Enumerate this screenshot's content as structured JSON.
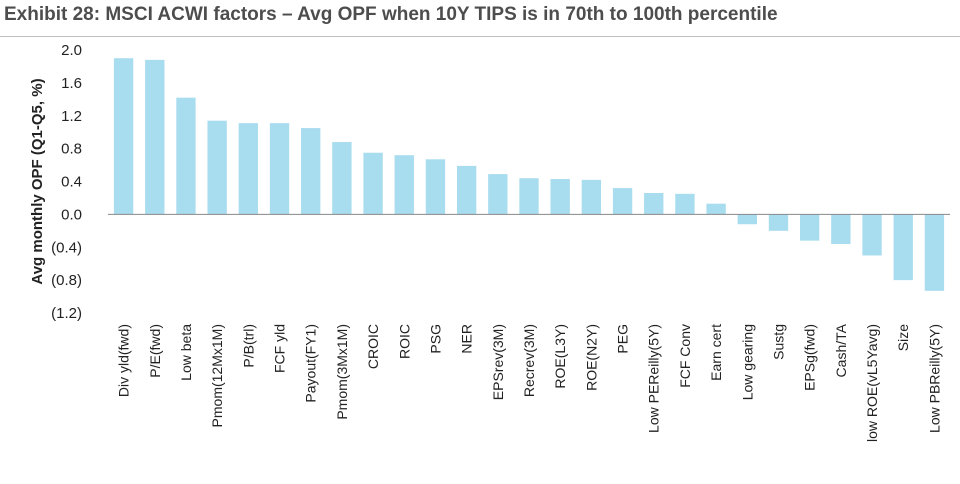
{
  "title": "Exhibit 28: MSCI ACWI factors – Avg OPF when 10Y TIPS is in 70th to 100th percentile",
  "colors": {
    "bar": "#a8dcef",
    "axis": "#888888",
    "text": "#222222",
    "title": "#4d4d4d"
  },
  "chart_data": {
    "type": "bar",
    "title": "Exhibit 28: MSCI ACWI factors – Avg OPF when 10Y TIPS is in 70th to 100th percentile",
    "xlabel": "",
    "ylabel": "Avg monthly OPF (Q1-Q5, %)",
    "ylim": [
      -1.2,
      2.0
    ],
    "yticks": [
      2.0,
      1.6,
      1.2,
      0.8,
      0.4,
      0.0,
      -0.4,
      -0.8,
      -1.2
    ],
    "ytick_labels": [
      "2.0",
      "1.6",
      "1.2",
      "0.8",
      "0.4",
      "0.0",
      "(0.4)",
      "(0.8)",
      "(1.2)"
    ],
    "grid": false,
    "legend": "none",
    "categories": [
      "Div yld(fwd)",
      "P/E(fwd)",
      "Low beta",
      "Pmom(12Mx1M)",
      "P/B(trl)",
      "FCF yld",
      "Payout(FY1)",
      "Pmom(3Mx1M)",
      "CROIC",
      "ROIC",
      "PSG",
      "NER",
      "EPSrev(3M)",
      "Recrev(3M)",
      "ROE(L3Y)",
      "ROE(N2Y)",
      "PEG",
      "Low PEReilly(5Y)",
      "FCF Conv",
      "Earn cert",
      "Low gearing",
      "Sustg",
      "EPSg(fwd)",
      "Cash/TA",
      "low ROE(vL5Yavg)",
      "Size",
      "Low PBReilly(5Y)"
    ],
    "values": [
      1.9,
      1.88,
      1.42,
      1.14,
      1.11,
      1.11,
      1.05,
      0.88,
      0.75,
      0.72,
      0.67,
      0.59,
      0.49,
      0.44,
      0.43,
      0.42,
      0.32,
      0.26,
      0.25,
      0.13,
      -0.12,
      -0.2,
      -0.32,
      -0.36,
      -0.5,
      -0.8,
      -0.93
    ]
  }
}
